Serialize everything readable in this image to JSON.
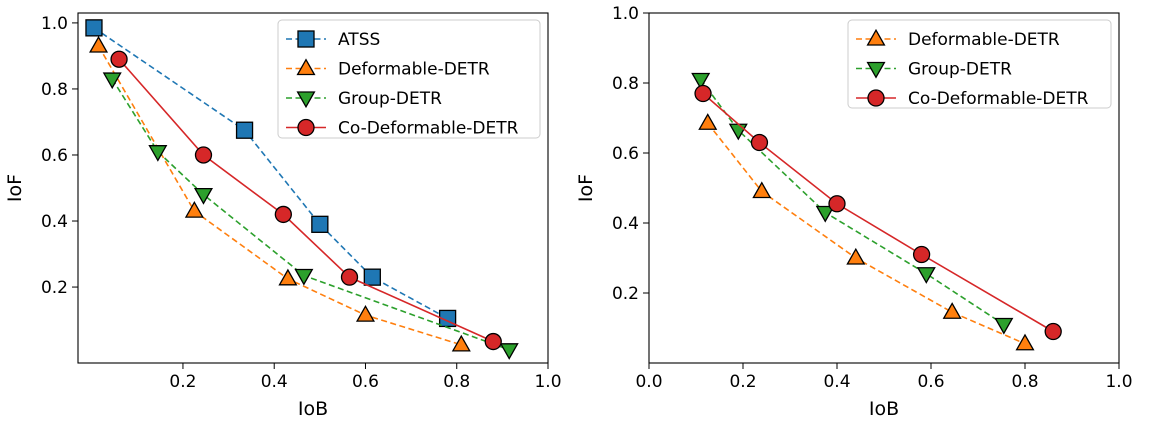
{
  "chart_data": [
    {
      "type": "line",
      "title": "",
      "xlabel": "IoB",
      "ylabel": "IoF",
      "xlim": [
        -0.03,
        1.0
      ],
      "ylim": [
        -0.03,
        1.03
      ],
      "xticks": [
        0.2,
        0.4,
        0.6,
        0.8,
        1.0
      ],
      "xtick_labels": [
        "0.2",
        "0.4",
        "0.6",
        "0.8",
        "1.0"
      ],
      "yticks": [
        0.2,
        0.4,
        0.6,
        0.8,
        1.0
      ],
      "ytick_labels": [
        "0.2",
        "0.4",
        "0.6",
        "0.8",
        "1.0"
      ],
      "grid": false,
      "legend_position": "top-right",
      "series": [
        {
          "name": "ATSS",
          "color": "#1f77b4",
          "marker": "square",
          "dash": true,
          "x": [
            0.005,
            0.335,
            0.5,
            0.615,
            0.78
          ],
          "y": [
            0.985,
            0.675,
            0.39,
            0.23,
            0.105
          ]
        },
        {
          "name": "Deformable-DETR",
          "color": "#ff7f0e",
          "marker": "triangle-up",
          "dash": true,
          "x": [
            0.015,
            0.225,
            0.43,
            0.6,
            0.81
          ],
          "y": [
            0.93,
            0.43,
            0.225,
            0.115,
            0.025
          ]
        },
        {
          "name": "Group-DETR",
          "color": "#2ca02c",
          "marker": "triangle-down",
          "dash": true,
          "x": [
            0.045,
            0.145,
            0.245,
            0.465,
            0.915
          ],
          "y": [
            0.83,
            0.61,
            0.48,
            0.235,
            0.01
          ]
        },
        {
          "name": "Co-Deformable-DETR",
          "color": "#d62728",
          "marker": "circle",
          "dash": false,
          "x": [
            0.06,
            0.245,
            0.42,
            0.565,
            0.88
          ],
          "y": [
            0.89,
            0.6,
            0.42,
            0.23,
            0.035
          ]
        }
      ]
    },
    {
      "type": "line",
      "title": "",
      "xlabel": "IoB",
      "ylabel": "IoF",
      "xlim": [
        0.0,
        1.0
      ],
      "ylim": [
        0.0,
        1.0
      ],
      "xticks": [
        0.0,
        0.2,
        0.4,
        0.6,
        0.8,
        1.0
      ],
      "xtick_labels": [
        "0.0",
        "0.2",
        "0.4",
        "0.6",
        "0.8",
        "1.0"
      ],
      "yticks": [
        0.2,
        0.4,
        0.6,
        0.8,
        1.0
      ],
      "ytick_labels": [
        "0.2",
        "0.4",
        "0.6",
        "0.8",
        "1.0"
      ],
      "grid": false,
      "legend_position": "top-right",
      "series": [
        {
          "name": "Deformable-DETR",
          "color": "#ff7f0e",
          "marker": "triangle-up",
          "dash": true,
          "x": [
            0.125,
            0.24,
            0.44,
            0.645,
            0.8
          ],
          "y": [
            0.685,
            0.49,
            0.3,
            0.145,
            0.055
          ]
        },
        {
          "name": "Group-DETR",
          "color": "#2ca02c",
          "marker": "triangle-down",
          "dash": true,
          "x": [
            0.11,
            0.19,
            0.375,
            0.59,
            0.755
          ],
          "y": [
            0.81,
            0.665,
            0.43,
            0.255,
            0.11
          ]
        },
        {
          "name": "Co-Deformable-DETR",
          "color": "#d62728",
          "marker": "circle",
          "dash": false,
          "x": [
            0.115,
            0.235,
            0.4,
            0.58,
            0.86
          ],
          "y": [
            0.77,
            0.63,
            0.455,
            0.31,
            0.09
          ]
        }
      ]
    }
  ]
}
